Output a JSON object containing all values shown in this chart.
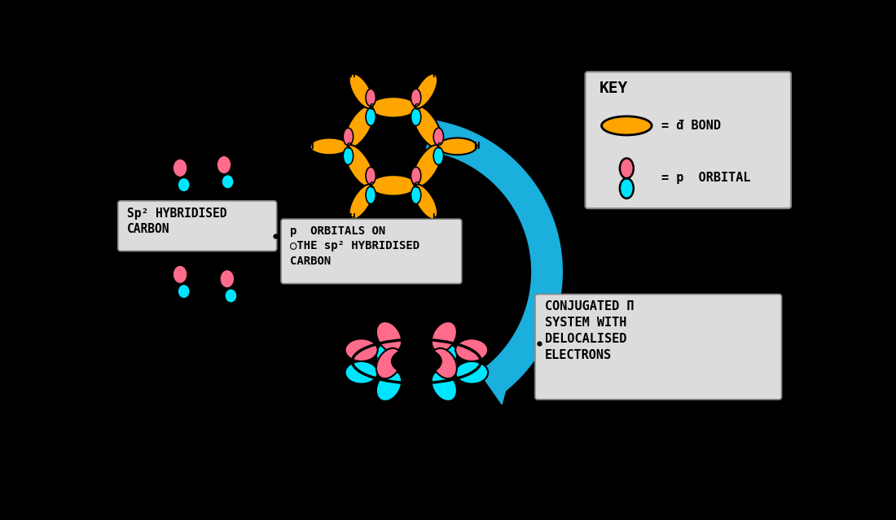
{
  "bg_color": "#000000",
  "orange": "#FFA500",
  "pink": "#FF6B8A",
  "cyan": "#00E5FF",
  "black": "#000000",
  "gray_box": "#DCDCDC",
  "arrow_color": "#1AAFDC",
  "key_title": "KEY",
  "key_sigma": "= đ BOND",
  "key_orbital": "= p  ORBITAL",
  "label_sp2": "Sp² HYBRIDISED\nCARBON",
  "label_p_orbitals": "p  ORBITALS ON\n○THE sp² HYBRIDISED\nCARBON",
  "label_conjugated": "CONJUGATED Π\nSYSTEM WITH\nDELOCALISED\nELECTRONS"
}
